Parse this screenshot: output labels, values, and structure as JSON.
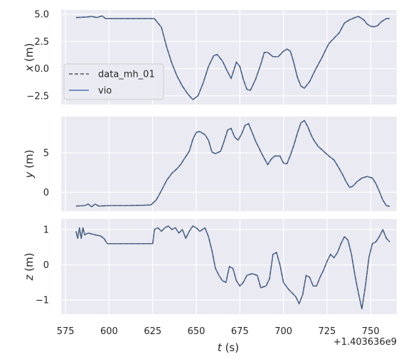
{
  "chart_data": {
    "type": "line",
    "x_offset_label": "+1.403636e9",
    "xlabel_italic": "t",
    "xlabel_unit": " (s)",
    "xlim": [
      572.5,
      765
    ],
    "x_ticks": [
      575,
      600,
      625,
      650,
      675,
      700,
      725,
      750
    ],
    "legend": {
      "placement": "center-left (top panel)",
      "entries": [
        {
          "name": "data_mh_01",
          "style": "dashed",
          "color": "#555555"
        },
        {
          "name": "vio",
          "style": "solid",
          "color": "#4c72b0"
        }
      ]
    },
    "subplots": [
      {
        "ylabel_italic": "x",
        "ylabel_unit": " (m)",
        "ylim": [
          -3.3,
          5.4
        ],
        "y_ticks": [
          5.0,
          2.5,
          0.0,
          -2.5
        ],
        "y_tick_labels": [
          "5.0",
          "2.5",
          "0.0",
          "−2.5"
        ],
        "points": [
          [
            581,
            4.7
          ],
          [
            587,
            4.75
          ],
          [
            590,
            4.8
          ],
          [
            593,
            4.7
          ],
          [
            596,
            4.85
          ],
          [
            598,
            4.6
          ],
          [
            605,
            4.6
          ],
          [
            615,
            4.6
          ],
          [
            622,
            4.6
          ],
          [
            626,
            4.6
          ],
          [
            630,
            3.8
          ],
          [
            633,
            2.0
          ],
          [
            636,
            0.5
          ],
          [
            639,
            -0.7
          ],
          [
            642,
            -1.6
          ],
          [
            645,
            -2.3
          ],
          [
            648,
            -2.85
          ],
          [
            651,
            -2.5
          ],
          [
            654,
            -1.3
          ],
          [
            657,
            0.2
          ],
          [
            660,
            1.2
          ],
          [
            662,
            1.3
          ],
          [
            665,
            0.7
          ],
          [
            668,
            -0.3
          ],
          [
            670,
            -0.9
          ],
          [
            672,
            0.1
          ],
          [
            673,
            0.6
          ],
          [
            675,
            0.2
          ],
          [
            677,
            -1.0
          ],
          [
            679,
            -1.9
          ],
          [
            681,
            -2.0
          ],
          [
            684,
            -1.0
          ],
          [
            687,
            0.4
          ],
          [
            689,
            1.5
          ],
          [
            691,
            1.5
          ],
          [
            694,
            1.1
          ],
          [
            697,
            1.1
          ],
          [
            700,
            1.6
          ],
          [
            702,
            1.8
          ],
          [
            704,
            1.6
          ],
          [
            706,
            0.5
          ],
          [
            708,
            -0.8
          ],
          [
            710,
            -1.6
          ],
          [
            712,
            -1.8
          ],
          [
            715,
            -1.2
          ],
          [
            718,
            -0.2
          ],
          [
            722,
            1.0
          ],
          [
            726,
            2.3
          ],
          [
            729,
            2.8
          ],
          [
            732,
            3.3
          ],
          [
            735,
            4.2
          ],
          [
            738,
            4.5
          ],
          [
            741,
            4.7
          ],
          [
            743,
            4.8
          ],
          [
            746,
            4.5
          ],
          [
            748,
            4.1
          ],
          [
            750,
            3.9
          ],
          [
            752,
            3.85
          ],
          [
            754,
            3.95
          ],
          [
            756,
            4.3
          ],
          [
            759,
            4.6
          ],
          [
            761,
            4.6
          ]
        ]
      },
      {
        "ylabel_italic": "y",
        "ylabel_unit": " (m)",
        "ylim": [
          -2.4,
          9.6
        ],
        "y_ticks": [
          5,
          0
        ],
        "y_tick_labels": [
          "5",
          "0"
        ],
        "points": [
          [
            581,
            -1.75
          ],
          [
            586,
            -1.7
          ],
          [
            588,
            -1.5
          ],
          [
            590,
            -1.85
          ],
          [
            592,
            -1.5
          ],
          [
            594,
            -1.75
          ],
          [
            600,
            -1.7
          ],
          [
            610,
            -1.7
          ],
          [
            620,
            -1.65
          ],
          [
            624,
            -1.6
          ],
          [
            627,
            -1.0
          ],
          [
            630,
            0.2
          ],
          [
            633,
            1.5
          ],
          [
            636,
            2.4
          ],
          [
            639,
            3.0
          ],
          [
            641,
            3.5
          ],
          [
            643,
            4.2
          ],
          [
            646,
            5.2
          ],
          [
            648,
            6.7
          ],
          [
            650,
            7.6
          ],
          [
            652,
            7.7
          ],
          [
            655,
            7.3
          ],
          [
            657,
            6.6
          ],
          [
            659,
            5.1
          ],
          [
            661,
            4.9
          ],
          [
            664,
            5.2
          ],
          [
            666,
            6.5
          ],
          [
            668,
            7.9
          ],
          [
            670,
            8.1
          ],
          [
            672,
            7.0
          ],
          [
            674,
            6.6
          ],
          [
            676,
            7.4
          ],
          [
            678,
            8.5
          ],
          [
            680,
            8.7
          ],
          [
            682,
            7.6
          ],
          [
            684,
            6.5
          ],
          [
            686,
            5.6
          ],
          [
            688,
            4.7
          ],
          [
            691,
            3.5
          ],
          [
            693,
            4.2
          ],
          [
            695,
            4.6
          ],
          [
            698,
            4.6
          ],
          [
            700,
            3.7
          ],
          [
            702,
            3.6
          ],
          [
            704,
            4.7
          ],
          [
            706,
            6.0
          ],
          [
            708,
            7.5
          ],
          [
            710,
            8.8
          ],
          [
            712,
            9.1
          ],
          [
            714,
            8.3
          ],
          [
            716,
            7.2
          ],
          [
            718,
            6.4
          ],
          [
            720,
            5.8
          ],
          [
            723,
            5.2
          ],
          [
            726,
            4.6
          ],
          [
            729,
            4.1
          ],
          [
            732,
            3.0
          ],
          [
            734,
            2.2
          ],
          [
            736,
            1.3
          ],
          [
            738,
            0.6
          ],
          [
            740,
            0.8
          ],
          [
            742,
            1.3
          ],
          [
            745,
            1.8
          ],
          [
            748,
            2.0
          ],
          [
            751,
            1.8
          ],
          [
            753,
            1.1
          ],
          [
            755,
            0.1
          ],
          [
            757,
            -1.0
          ],
          [
            759,
            -1.7
          ],
          [
            761,
            -1.8
          ]
        ]
      },
      {
        "ylabel_italic": "z",
        "ylabel_unit": " (m)",
        "ylim": [
          -1.4,
          1.3
        ],
        "y_ticks": [
          1,
          0,
          -1
        ],
        "y_tick_labels": [
          "1",
          "0",
          "−1"
        ],
        "points": [
          [
            581,
            0.95
          ],
          [
            582,
            0.75
          ],
          [
            583,
            1.05
          ],
          [
            584,
            0.75
          ],
          [
            585,
            1.05
          ],
          [
            586,
            0.85
          ],
          [
            588,
            0.9
          ],
          [
            592,
            0.85
          ],
          [
            595,
            0.82
          ],
          [
            597,
            0.75
          ],
          [
            599,
            0.6
          ],
          [
            605,
            0.6
          ],
          [
            615,
            0.6
          ],
          [
            624,
            0.6
          ],
          [
            625,
            0.6
          ],
          [
            626,
            1.0
          ],
          [
            628,
            1.05
          ],
          [
            630,
            0.95
          ],
          [
            632,
            1.05
          ],
          [
            634,
            1.1
          ],
          [
            636,
            1.0
          ],
          [
            638,
            1.05
          ],
          [
            640,
            0.9
          ],
          [
            642,
            1.0
          ],
          [
            644,
            0.75
          ],
          [
            646,
            0.95
          ],
          [
            648,
            1.1
          ],
          [
            650,
            1.05
          ],
          [
            652,
            0.95
          ],
          [
            655,
            1.05
          ],
          [
            657,
            0.8
          ],
          [
            659,
            0.4
          ],
          [
            661,
            -0.1
          ],
          [
            663,
            -0.3
          ],
          [
            665,
            -0.45
          ],
          [
            667,
            -0.5
          ],
          [
            669,
            -0.05
          ],
          [
            671,
            -0.1
          ],
          [
            673,
            -0.45
          ],
          [
            675,
            -0.6
          ],
          [
            677,
            -0.5
          ],
          [
            679,
            -0.3
          ],
          [
            682,
            -0.25
          ],
          [
            685,
            -0.3
          ],
          [
            687,
            -0.65
          ],
          [
            690,
            -0.6
          ],
          [
            692,
            -0.4
          ],
          [
            694,
            0.3
          ],
          [
            696,
            0.35
          ],
          [
            698,
            0.0
          ],
          [
            700,
            -0.5
          ],
          [
            703,
            -0.7
          ],
          [
            705,
            -0.8
          ],
          [
            707,
            -0.9
          ],
          [
            709,
            -1.1
          ],
          [
            711,
            -0.85
          ],
          [
            713,
            -0.3
          ],
          [
            715,
            -0.35
          ],
          [
            717,
            -0.6
          ],
          [
            719,
            -0.6
          ],
          [
            721,
            -0.35
          ],
          [
            723,
            -0.15
          ],
          [
            725,
            0.1
          ],
          [
            727,
            0.3
          ],
          [
            729,
            0.2
          ],
          [
            731,
            0.35
          ],
          [
            733,
            0.6
          ],
          [
            735,
            0.8
          ],
          [
            737,
            0.7
          ],
          [
            739,
            0.3
          ],
          [
            741,
            -0.3
          ],
          [
            743,
            -0.8
          ],
          [
            745,
            -1.25
          ],
          [
            747,
            -0.6
          ],
          [
            749,
            0.2
          ],
          [
            751,
            0.6
          ],
          [
            753,
            0.65
          ],
          [
            755,
            0.8
          ],
          [
            757,
            1.0
          ],
          [
            759,
            0.75
          ],
          [
            761,
            0.65
          ]
        ]
      }
    ]
  }
}
